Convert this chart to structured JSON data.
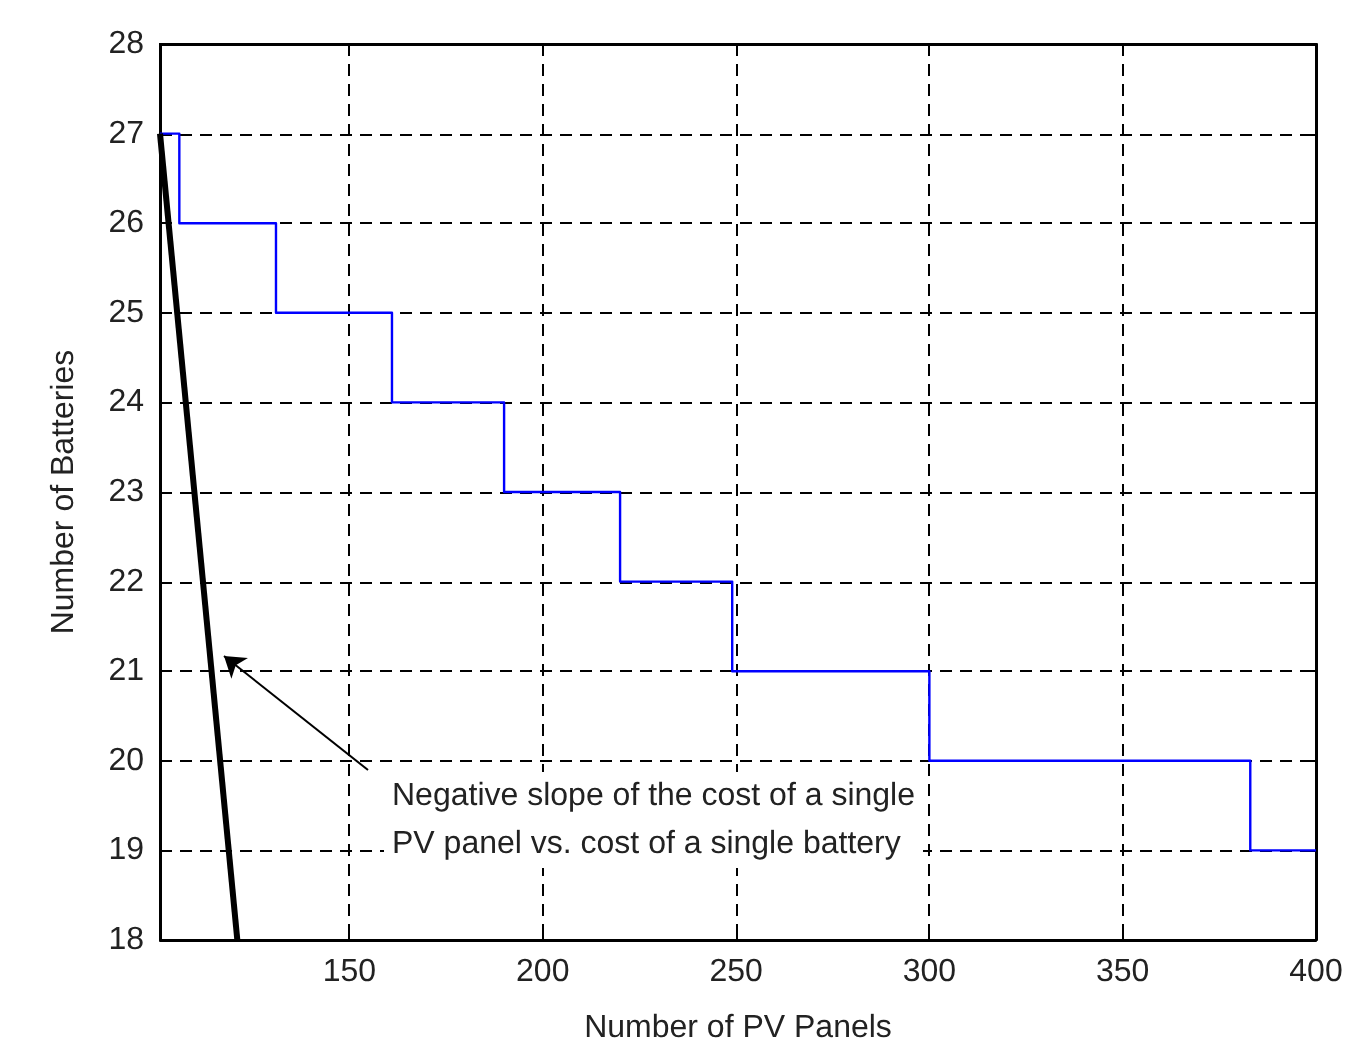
{
  "chart_data": {
    "type": "line",
    "xlabel": "Number of PV Panels",
    "ylabel": "Number of Batteries",
    "xlim": [
      101,
      400
    ],
    "xticks": [
      150,
      200,
      250,
      300,
      350,
      400
    ],
    "ylim": [
      18,
      28
    ],
    "yticks": [
      18,
      19,
      20,
      21,
      22,
      23,
      24,
      25,
      26,
      27,
      28
    ],
    "grid": true,
    "marker": "none",
    "series": [
      {
        "type": "step",
        "color": "#0000ff",
        "x": [
          101,
          106,
          131,
          161,
          190,
          220,
          249,
          300,
          383,
          400
        ],
        "values": [
          27,
          26,
          25,
          24,
          23,
          22,
          21,
          20,
          19,
          19
        ]
      },
      {
        "color": "#000000",
        "x": [
          101,
          121
        ],
        "values": [
          27,
          18
        ]
      }
    ],
    "annotations": [
      "Negative slope of the cost of a single\nPV panel vs. cost of a single battery"
    ]
  }
}
